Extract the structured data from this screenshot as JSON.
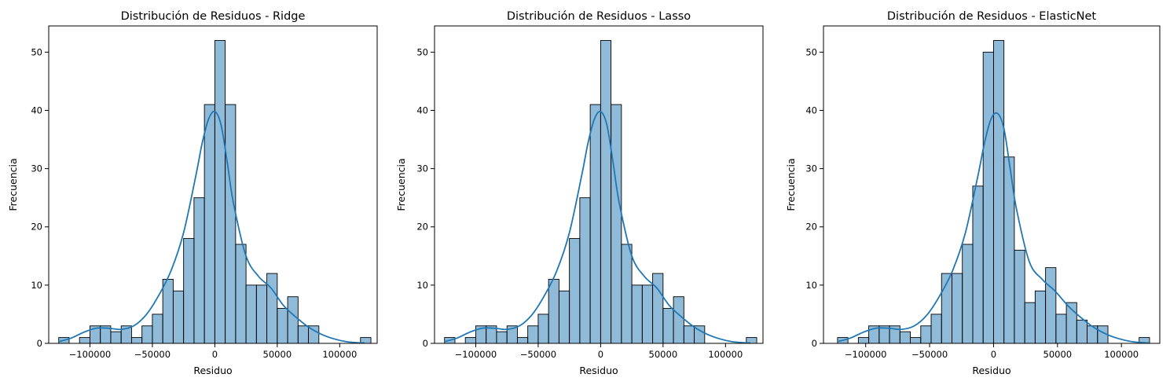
{
  "chart_data": [
    {
      "type": "histogram",
      "title": "Distribución de Residuos - Ridge",
      "xlabel": "Residuo",
      "ylabel": "Frecuencia",
      "xlim": [
        -133000,
        130000
      ],
      "ylim": [
        0,
        54.5
      ],
      "xticks": [
        -100000,
        -50000,
        0,
        50000,
        100000
      ],
      "yticks": [
        0,
        10,
        20,
        30,
        40,
        50
      ],
      "bin_start": -125000,
      "bin_width": 8333,
      "counts": [
        1,
        0,
        1,
        3,
        3,
        2,
        3,
        1,
        3,
        5,
        11,
        9,
        18,
        25,
        41,
        52,
        41,
        17,
        10,
        10,
        12,
        6,
        8,
        3,
        3,
        0,
        0,
        0,
        0,
        1
      ],
      "kde": {
        "x": [
          -125000,
          -115000,
          -105000,
          -95000,
          -85000,
          -75000,
          -65000,
          -55000,
          -45000,
          -35000,
          -25000,
          -15000,
          -10000,
          -5000,
          0,
          5000,
          10000,
          15000,
          25000,
          35000,
          45000,
          55000,
          65000,
          75000,
          85000,
          95000,
          105000,
          115000,
          120000
        ],
        "y": [
          0.3,
          0.9,
          1.9,
          2.6,
          2.6,
          2.4,
          3.0,
          4.9,
          8.2,
          12.5,
          19.0,
          29.0,
          34.5,
          38.5,
          39.8,
          37.5,
          31.0,
          24.0,
          15.0,
          11.5,
          9.5,
          6.5,
          4.5,
          2.8,
          1.6,
          0.8,
          0.3,
          0.1,
          0.05
        ]
      },
      "grid": false
    },
    {
      "type": "histogram",
      "title": "Distribución de Residuos - Lasso",
      "xlabel": "Residuo",
      "ylabel": "Frecuencia",
      "xlim": [
        -133000,
        130000
      ],
      "ylim": [
        0,
        54.5
      ],
      "xticks": [
        -100000,
        -50000,
        0,
        50000,
        100000
      ],
      "yticks": [
        0,
        10,
        20,
        30,
        40,
        50
      ],
      "bin_start": -125000,
      "bin_width": 8333,
      "counts": [
        1,
        0,
        1,
        3,
        3,
        2,
        3,
        1,
        3,
        5,
        11,
        9,
        18,
        25,
        41,
        52,
        41,
        17,
        10,
        10,
        12,
        6,
        8,
        3,
        3,
        0,
        0,
        0,
        0,
        1
      ],
      "kde": {
        "x": [
          -125000,
          -115000,
          -105000,
          -95000,
          -85000,
          -75000,
          -65000,
          -55000,
          -45000,
          -35000,
          -25000,
          -15000,
          -10000,
          -5000,
          0,
          5000,
          10000,
          15000,
          25000,
          35000,
          45000,
          55000,
          65000,
          75000,
          85000,
          95000,
          105000,
          115000,
          120000
        ],
        "y": [
          0.3,
          0.9,
          1.9,
          2.6,
          2.6,
          2.4,
          3.0,
          4.9,
          8.2,
          12.5,
          19.0,
          29.0,
          34.5,
          38.5,
          39.8,
          37.5,
          31.0,
          24.0,
          15.0,
          11.5,
          9.5,
          6.5,
          4.5,
          2.8,
          1.6,
          0.8,
          0.3,
          0.1,
          0.05
        ]
      },
      "grid": false
    },
    {
      "type": "histogram",
      "title": "Distribución de Residuos - ElasticNet",
      "xlabel": "Residuo",
      "ylabel": "Frecuencia",
      "xlim": [
        -133000,
        130000
      ],
      "ylim": [
        0,
        54.5
      ],
      "xticks": [
        -100000,
        -50000,
        0,
        50000,
        100000
      ],
      "yticks": [
        0,
        10,
        20,
        30,
        40,
        50
      ],
      "bin_start": -122000,
      "bin_width": 8133,
      "counts": [
        1,
        0,
        1,
        3,
        3,
        3,
        2,
        1,
        3,
        5,
        12,
        12,
        17,
        27,
        50,
        52,
        32,
        16,
        7,
        9,
        13,
        5,
        7,
        4,
        3,
        3,
        0,
        0,
        0,
        1
      ],
      "kde": {
        "x": [
          -122000,
          -112000,
          -102000,
          -92000,
          -82000,
          -72000,
          -62000,
          -52000,
          -42000,
          -32000,
          -22000,
          -12000,
          -7000,
          -2000,
          3000,
          8000,
          13000,
          18000,
          28000,
          38000,
          48000,
          58000,
          68000,
          78000,
          88000,
          98000,
          108000,
          118000,
          122000
        ],
        "y": [
          0.3,
          0.9,
          1.9,
          2.6,
          2.6,
          2.4,
          3.0,
          4.9,
          8.2,
          12.5,
          19.0,
          29.0,
          34.5,
          38.5,
          39.5,
          37.0,
          30.0,
          23.0,
          14.0,
          11.0,
          9.0,
          6.5,
          4.5,
          2.8,
          1.6,
          0.8,
          0.3,
          0.1,
          0.05
        ]
      },
      "grid": false
    }
  ]
}
